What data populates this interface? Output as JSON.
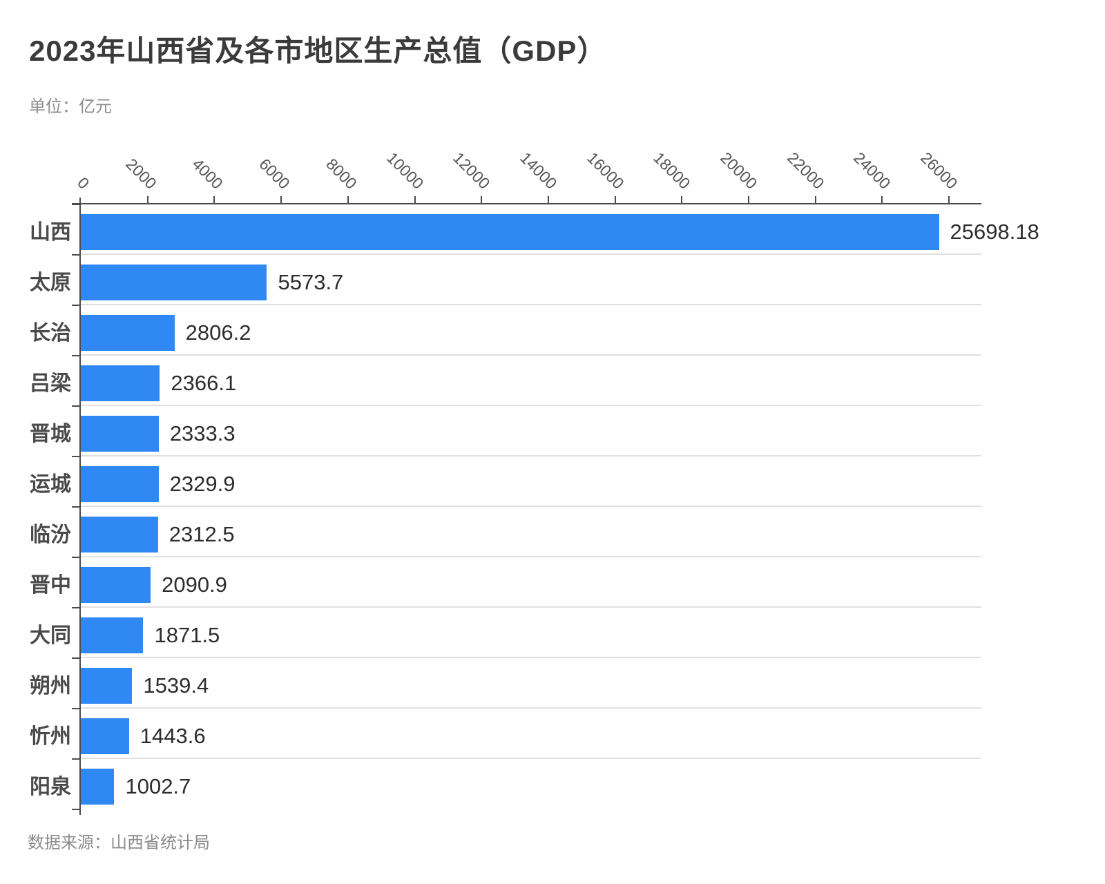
{
  "title": "2023年山西省及各市地区生产总值（GDP）",
  "subtitle": "单位：亿元",
  "footer": "数据来源：山西省统计局",
  "chart_data": {
    "type": "bar",
    "orientation": "horizontal",
    "title": "2023年山西省及各市地区生产总值（GDP）",
    "unit": "亿元",
    "source": "山西省统计局",
    "categories": [
      "山西",
      "太原",
      "长治",
      "吕梁",
      "晋城",
      "运城",
      "临汾",
      "晋中",
      "大同",
      "朔州",
      "忻州",
      "阳泉"
    ],
    "values": [
      25698.18,
      5573.7,
      2806.2,
      2366.1,
      2333.3,
      2329.9,
      2312.5,
      2090.9,
      1871.5,
      1539.4,
      1443.6,
      1002.7
    ],
    "value_labels": [
      "25698.18",
      "5573.7",
      "2806.2",
      "2366.1",
      "2333.3",
      "2329.9",
      "2312.5",
      "2090.9",
      "1871.5",
      "1539.4",
      "1443.6",
      "1002.7"
    ],
    "x_ticks": [
      0,
      2000,
      4000,
      6000,
      8000,
      10000,
      12000,
      14000,
      16000,
      18000,
      20000,
      22000,
      24000,
      26000
    ],
    "xlim": [
      0,
      26970
    ],
    "xlabel": "",
    "ylabel": "",
    "grid": false,
    "legend": null,
    "axis_position": "top",
    "bar_color": "#2F88F4"
  },
  "colors": {
    "background": "#ffffff",
    "bar": "#2F88F4",
    "axis": "#4a4a4a",
    "separator": "#e0e0e0",
    "title_text": "#3b3b3b",
    "muted_text": "#8c8c8c",
    "tick_text": "#555555",
    "value_text": "#2d2d2d",
    "category_text": "#4a4a4a"
  }
}
